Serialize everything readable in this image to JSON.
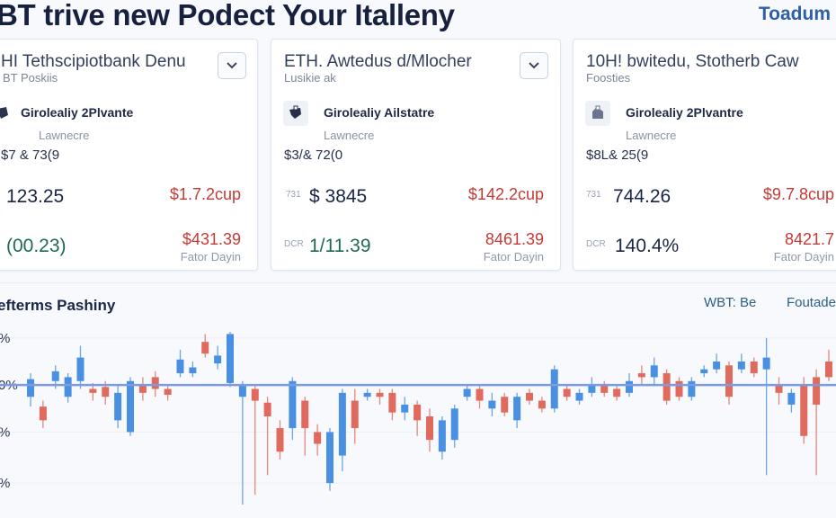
{
  "header": {
    "title": "BT trive new Podect Your Italleny",
    "brand": "Toadum"
  },
  "cards": [
    {
      "title": "HI Tethscipiotbank Denu",
      "subtitle": "BT Poskiis",
      "asset_name": "Girolealiy 2Plvante",
      "asset_sub": "Lawnecre",
      "range": "$7 & 73(9",
      "row1_label": "",
      "row1_value": "123.25",
      "row1_change": "$1.7.2cup",
      "row2_label": "",
      "row2_value": "(00.23)",
      "row2_change": "$431.39",
      "footer": "Fator Dayin"
    },
    {
      "title": "ETH. Awtedus d/Mlocher",
      "subtitle": "Lusikie ak",
      "asset_name": "Girolealiy Ailstatre",
      "asset_sub": "Lawnecre",
      "range": "$3/& 72(0",
      "row1_label": "731",
      "row1_value": "$ 3845",
      "row1_change": "$142.2cup",
      "row2_label": "DCR",
      "row2_value": "1/11.39",
      "row2_change": "8461.39",
      "footer": "Fator Dayin"
    },
    {
      "title": "10H! bwitedu, Stotherb Caw",
      "subtitle": "Foosties",
      "asset_name": "Girolealiy 2Plvantre",
      "asset_sub": "Lawnecre",
      "range": "$8L& 25(9",
      "row1_label": "731",
      "row1_value": "744.26",
      "row1_change": "$9.7.8cup",
      "row2_label": "DCR",
      "row2_value": "140.4%",
      "row2_change": "8421.7",
      "footer": "Fator Dayin"
    }
  ],
  "chart_section": {
    "title": "efterms Pashiny",
    "legend_a": "WBT: Be",
    "legend_b": "Foutade"
  },
  "chart_data": {
    "type": "candlestick",
    "y_tick_labels": [
      "%",
      "0%",
      "%",
      "%"
    ],
    "ylim": [
      0,
      100
    ],
    "reference_level": 66,
    "colors": {
      "up": "#4a90e2",
      "down": "#e06a5e",
      "reference": "#7c9be0"
    },
    "candles": [
      {
        "dir": "up",
        "o": 60,
        "c": 69,
        "h": 72,
        "l": 55
      },
      {
        "dir": "down",
        "o": 55,
        "c": 48,
        "h": 58,
        "l": 44
      },
      {
        "dir": "up",
        "o": 68,
        "c": 73,
        "h": 76,
        "l": 64
      },
      {
        "dir": "up",
        "o": 60,
        "c": 70,
        "h": 72,
        "l": 57
      },
      {
        "dir": "up",
        "o": 68,
        "c": 80,
        "h": 86,
        "l": 64
      },
      {
        "dir": "down",
        "o": 64,
        "c": 62,
        "h": 67,
        "l": 58
      },
      {
        "dir": "down",
        "o": 65,
        "c": 60,
        "h": 68,
        "l": 56
      },
      {
        "dir": "up",
        "o": 48,
        "c": 62,
        "h": 66,
        "l": 44
      },
      {
        "dir": "up",
        "o": 42,
        "c": 68,
        "h": 70,
        "l": 40
      },
      {
        "dir": "down",
        "o": 66,
        "c": 62,
        "h": 70,
        "l": 58
      },
      {
        "dir": "down",
        "o": 70,
        "c": 64,
        "h": 73,
        "l": 60
      },
      {
        "dir": "down",
        "o": 64,
        "c": 61,
        "h": 66,
        "l": 58
      },
      {
        "dir": "up",
        "o": 72,
        "c": 79,
        "h": 84,
        "l": 70
      },
      {
        "dir": "up",
        "o": 72,
        "c": 75,
        "h": 78,
        "l": 70
      },
      {
        "dir": "down",
        "o": 88,
        "c": 82,
        "h": 92,
        "l": 80
      },
      {
        "dir": "up",
        "o": 77,
        "c": 81,
        "h": 86,
        "l": 74
      },
      {
        "dir": "up",
        "o": 67,
        "c": 92,
        "h": 93,
        "l": 65
      },
      {
        "dir": "up",
        "o": 60,
        "c": 66,
        "h": 68,
        "l": 5
      },
      {
        "dir": "down",
        "o": 64,
        "c": 58,
        "h": 66,
        "l": 10
      },
      {
        "dir": "down",
        "o": 57,
        "c": 50,
        "h": 60,
        "l": 20
      },
      {
        "dir": "down",
        "o": 44,
        "c": 32,
        "h": 48,
        "l": 28
      },
      {
        "dir": "up",
        "o": 44,
        "c": 68,
        "h": 70,
        "l": 38
      },
      {
        "dir": "down",
        "o": 58,
        "c": 44,
        "h": 60,
        "l": 30
      },
      {
        "dir": "down",
        "o": 42,
        "c": 36,
        "h": 46,
        "l": 30
      },
      {
        "dir": "up",
        "o": 16,
        "c": 42,
        "h": 44,
        "l": 12
      },
      {
        "dir": "up",
        "o": 30,
        "c": 62,
        "h": 64,
        "l": 22
      },
      {
        "dir": "down",
        "o": 58,
        "c": 44,
        "h": 64,
        "l": 36
      },
      {
        "dir": "up",
        "o": 60,
        "c": 62,
        "h": 64,
        "l": 58
      },
      {
        "dir": "down",
        "o": 62,
        "c": 60,
        "h": 64,
        "l": 56
      },
      {
        "dir": "down",
        "o": 62,
        "c": 52,
        "h": 64,
        "l": 48
      },
      {
        "dir": "up",
        "o": 52,
        "c": 56,
        "h": 60,
        "l": 48
      },
      {
        "dir": "down",
        "o": 56,
        "c": 48,
        "h": 58,
        "l": 40
      },
      {
        "dir": "down",
        "o": 50,
        "c": 38,
        "h": 54,
        "l": 32
      },
      {
        "dir": "up",
        "o": 32,
        "c": 48,
        "h": 50,
        "l": 28
      },
      {
        "dir": "up",
        "o": 38,
        "c": 54,
        "h": 56,
        "l": 34
      },
      {
        "dir": "up",
        "o": 60,
        "c": 64,
        "h": 66,
        "l": 58
      },
      {
        "dir": "down",
        "o": 64,
        "c": 58,
        "h": 66,
        "l": 54
      },
      {
        "dir": "up",
        "o": 54,
        "c": 58,
        "h": 62,
        "l": 50
      },
      {
        "dir": "down",
        "o": 60,
        "c": 52,
        "h": 62,
        "l": 50
      },
      {
        "dir": "up",
        "o": 48,
        "c": 60,
        "h": 62,
        "l": 44
      },
      {
        "dir": "down",
        "o": 62,
        "c": 58,
        "h": 64,
        "l": 56
      },
      {
        "dir": "down",
        "o": 58,
        "c": 54,
        "h": 60,
        "l": 52
      },
      {
        "dir": "up",
        "o": 54,
        "c": 74,
        "h": 76,
        "l": 52
      },
      {
        "dir": "down",
        "o": 64,
        "c": 60,
        "h": 66,
        "l": 58
      },
      {
        "dir": "up",
        "o": 58,
        "c": 62,
        "h": 64,
        "l": 56
      },
      {
        "dir": "up",
        "o": 62,
        "c": 66,
        "h": 70,
        "l": 60
      },
      {
        "dir": "down",
        "o": 66,
        "c": 62,
        "h": 68,
        "l": 60
      },
      {
        "dir": "down",
        "o": 64,
        "c": 60,
        "h": 66,
        "l": 58
      },
      {
        "dir": "up",
        "o": 62,
        "c": 68,
        "h": 72,
        "l": 60
      },
      {
        "dir": "down",
        "o": 72,
        "c": 70,
        "h": 76,
        "l": 66
      },
      {
        "dir": "up",
        "o": 70,
        "c": 76,
        "h": 80,
        "l": 66
      },
      {
        "dir": "down",
        "o": 72,
        "c": 58,
        "h": 74,
        "l": 56
      },
      {
        "dir": "down",
        "o": 68,
        "c": 60,
        "h": 70,
        "l": 58
      },
      {
        "dir": "up",
        "o": 60,
        "c": 68,
        "h": 70,
        "l": 58
      },
      {
        "dir": "up",
        "o": 72,
        "c": 74,
        "h": 76,
        "l": 70
      },
      {
        "dir": "up",
        "o": 74,
        "c": 78,
        "h": 82,
        "l": 72
      },
      {
        "dir": "down",
        "o": 76,
        "c": 60,
        "h": 78,
        "l": 56
      },
      {
        "dir": "up",
        "o": 74,
        "c": 78,
        "h": 82,
        "l": 72
      },
      {
        "dir": "down",
        "o": 78,
        "c": 72,
        "h": 80,
        "l": 70
      },
      {
        "dir": "up",
        "o": 74,
        "c": 80,
        "h": 90,
        "l": 20
      },
      {
        "dir": "down",
        "o": 66,
        "c": 62,
        "h": 70,
        "l": 56
      },
      {
        "dir": "up",
        "o": 56,
        "c": 62,
        "h": 64,
        "l": 52
      },
      {
        "dir": "down",
        "o": 66,
        "c": 40,
        "h": 70,
        "l": 36
      },
      {
        "dir": "down",
        "o": 70,
        "c": 56,
        "h": 74,
        "l": 20
      },
      {
        "dir": "down",
        "o": 78,
        "c": 70,
        "h": 84,
        "l": 68
      }
    ]
  }
}
